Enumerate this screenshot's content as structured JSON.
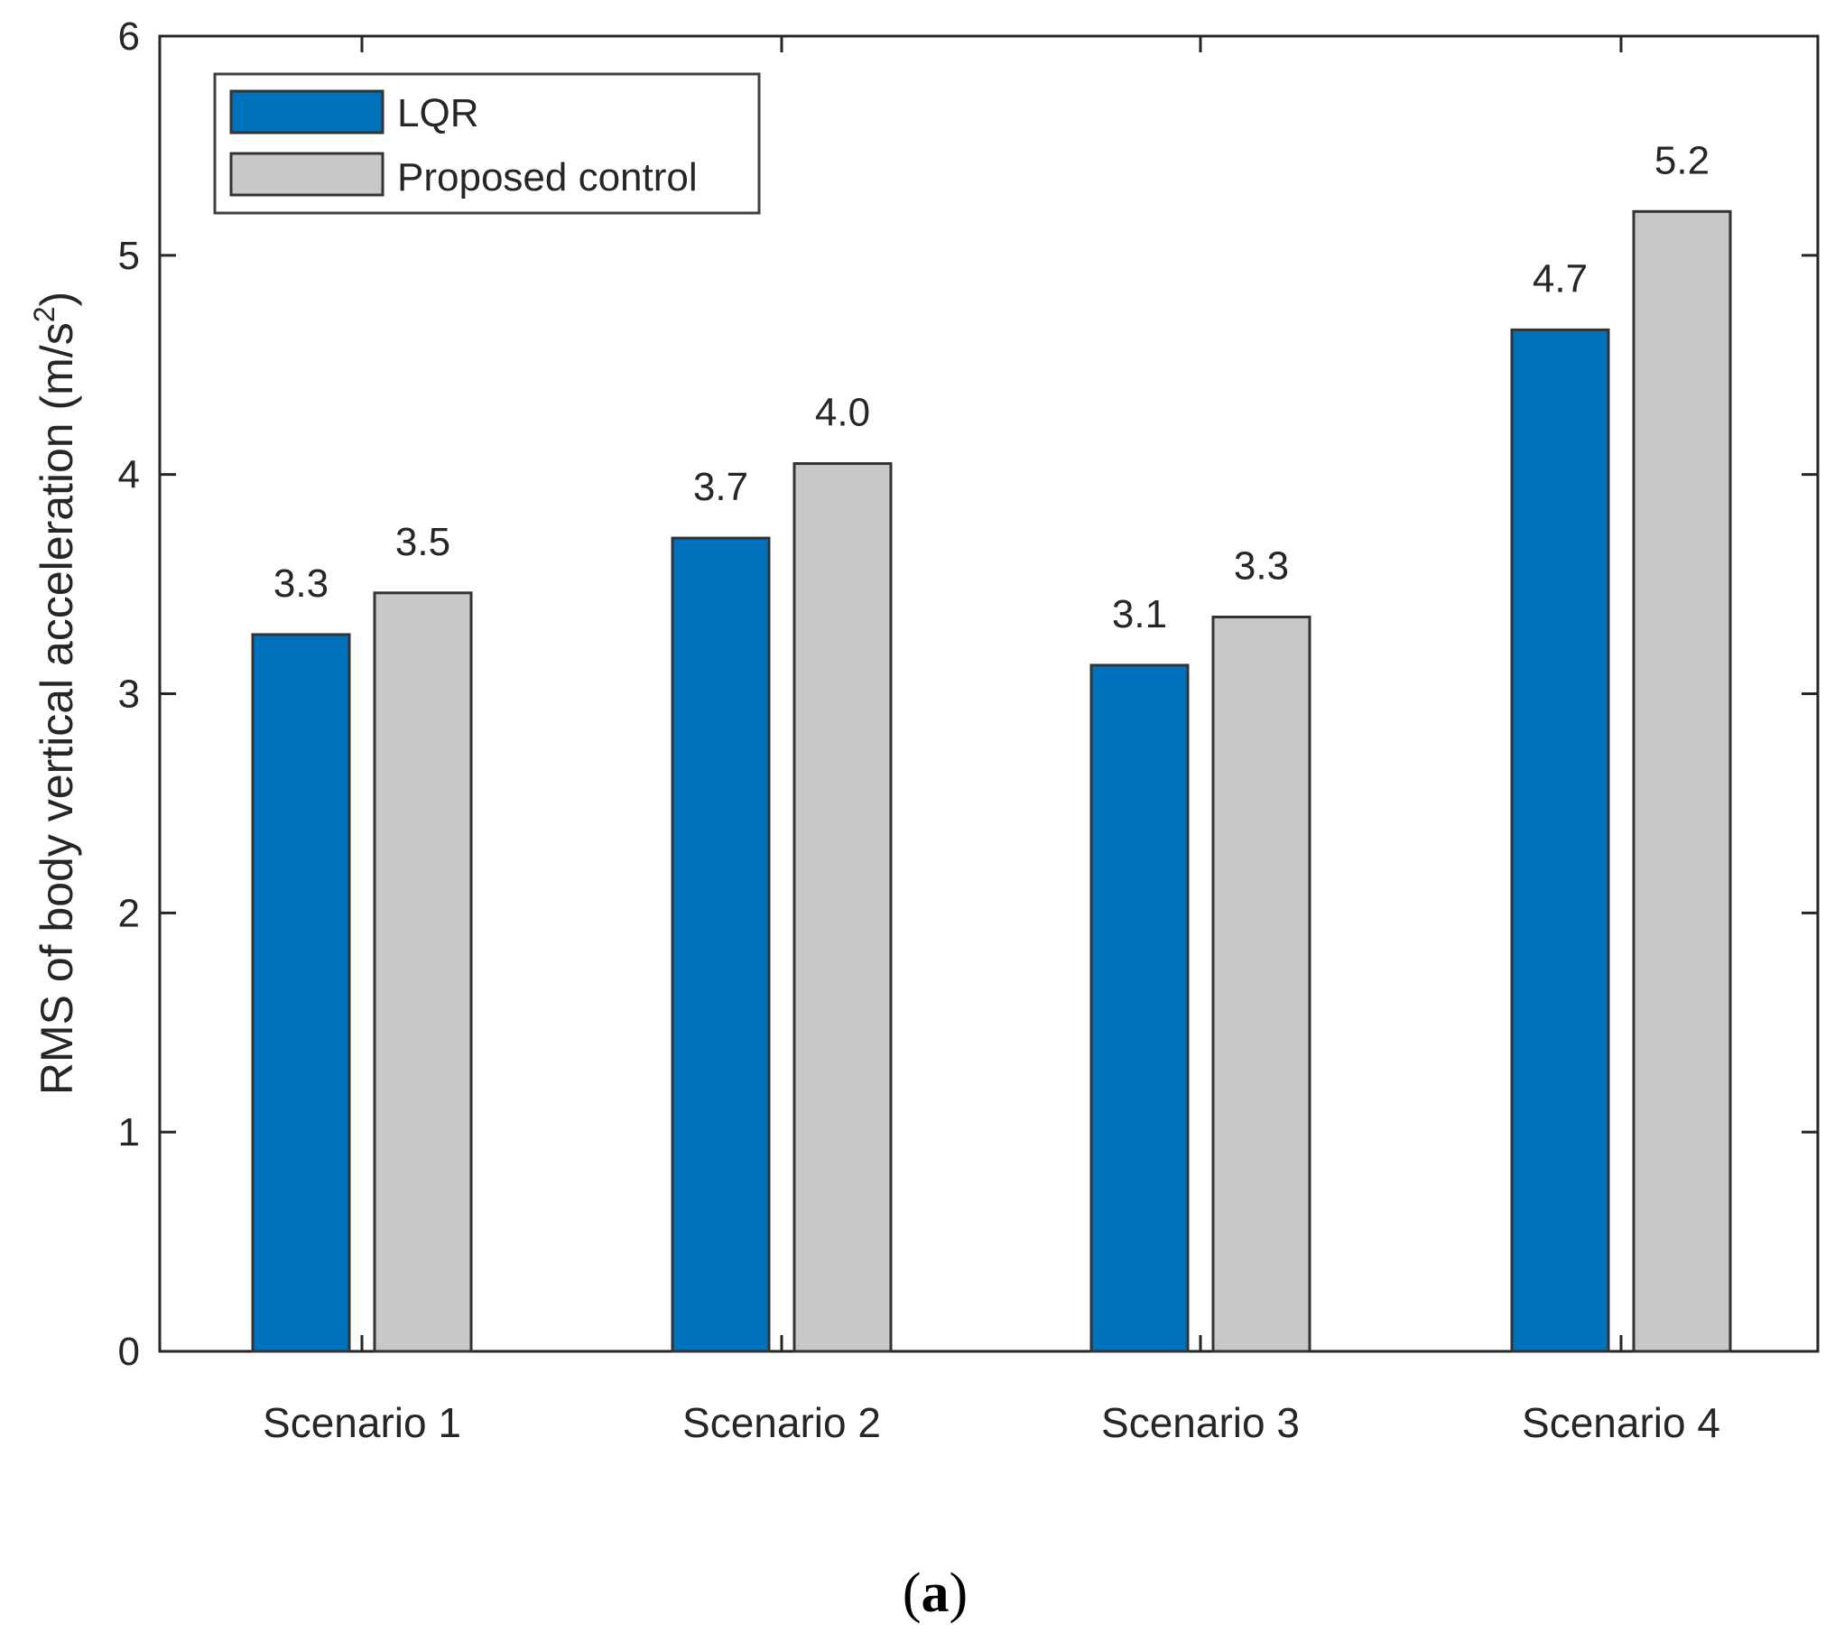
{
  "chart_data": {
    "type": "bar",
    "categories": [
      "Scenario 1",
      "Scenario 2",
      "Scenario 3",
      "Scenario 4"
    ],
    "series": [
      {
        "name": "LQR",
        "values": [
          3.27,
          3.71,
          3.13,
          4.66
        ],
        "labels": [
          "3.3",
          "3.7",
          "3.1",
          "4.7"
        ],
        "color": "#0072bd"
      },
      {
        "name": "Proposed control",
        "values": [
          3.46,
          4.05,
          3.35,
          5.2
        ],
        "labels": [
          "3.5",
          "4.0",
          "3.3",
          "5.2"
        ],
        "color": "#c8c8c8"
      }
    ],
    "xlabel": "",
    "ylabel_main": "RMS of body vertical acceleration (m/s",
    "ylabel_sup": "2",
    "ylabel_close": ")",
    "ylim": [
      0,
      6
    ],
    "yticks": [
      "0",
      "1",
      "2",
      "3",
      "4",
      "5",
      "6"
    ],
    "legend_position": "top-left",
    "grid": false
  },
  "panel_label": {
    "open": "(",
    "letter": "a",
    "close": ")"
  },
  "colors": {
    "axis": "#262626",
    "bar_edge": "#333333"
  }
}
